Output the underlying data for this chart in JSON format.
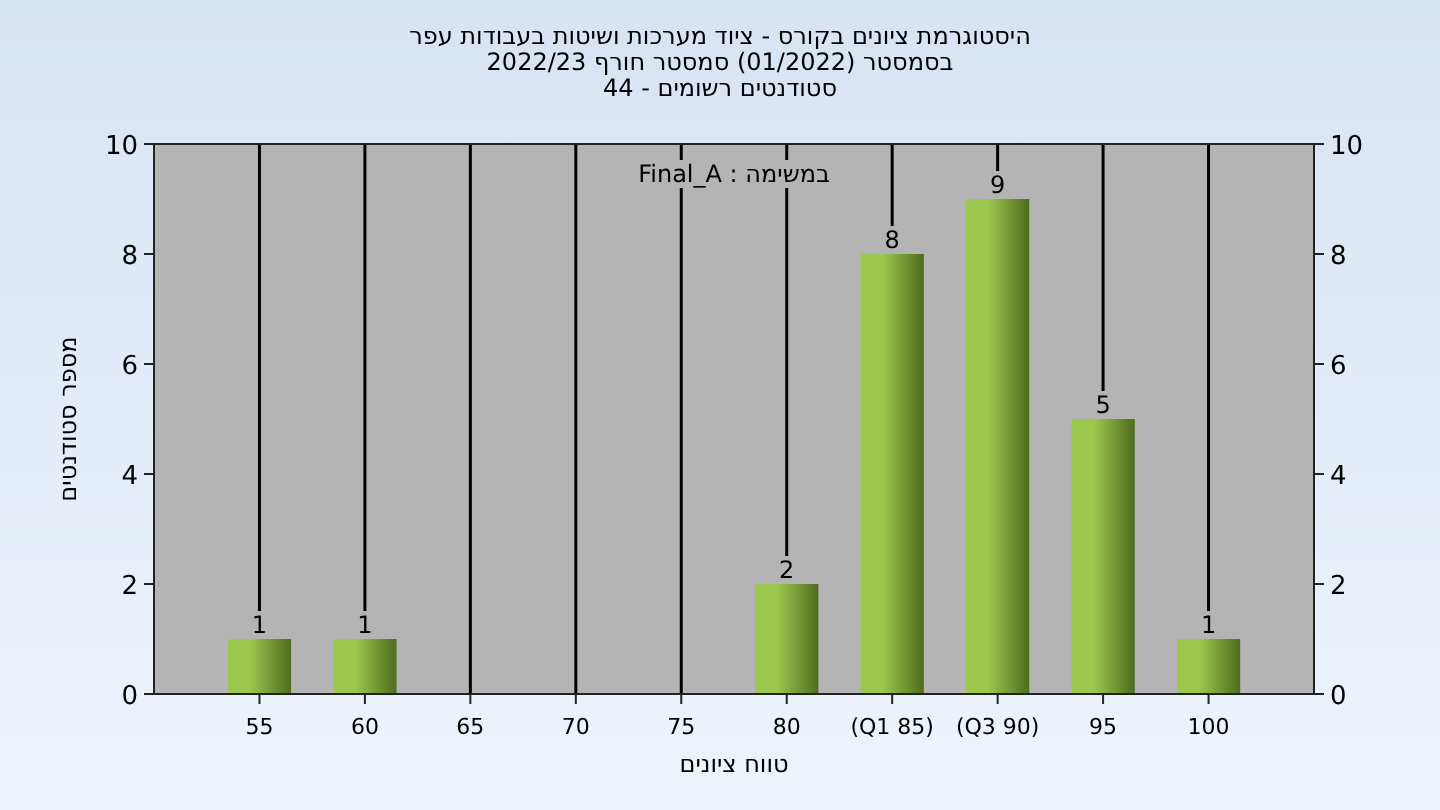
{
  "chart_data": {
    "type": "bar",
    "title": "היסטוגרמת ציונים בקורס - ציוד מערכות ושיטות בעבודות עפר",
    "subtitle": "בסמסטר  (01/2022)  סמסטר חורף 2022/23\nסטודנטים רשומים - 44",
    "xlabel": "טווח ציונים",
    "ylabel": "מספר סטודנטים",
    "annotations": [
      "במשימה : Final_A"
    ],
    "categories": [
      "55",
      "60",
      "65",
      "70",
      "75",
      "80",
      "(Q1 85)",
      "(Q3 90)",
      "95",
      "100"
    ],
    "values": [
      1,
      1,
      0,
      0,
      0,
      2,
      8,
      9,
      5,
      1
    ],
    "value_labels": [
      "1",
      "1",
      null,
      null,
      null,
      "2",
      "8",
      "9",
      "5",
      "1"
    ],
    "color": "#9cc84e",
    "ylim": [
      0,
      10
    ],
    "yticks": [
      0,
      2,
      4,
      6,
      8,
      10
    ],
    "y2lim": [
      0,
      10
    ],
    "y2ticks": [
      0,
      2,
      4,
      6,
      8,
      10
    ],
    "grid": "x"
  }
}
